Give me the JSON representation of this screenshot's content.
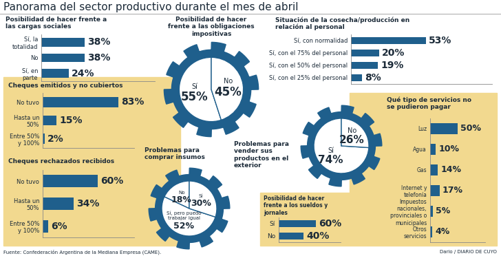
{
  "title": "Panorama del sector productivo durante el mes de abril",
  "source": "Fuente: Confederación Argentina de la Mediana Empresa (CAME).",
  "credit": "Dario / DIARIO DE CUYO",
  "chart_data": [
    {
      "type": "bar",
      "orientation": "horizontal",
      "title": "Posibilidad de hacer frente a las cargas sociales",
      "categories": [
        "Sí, la totalidad",
        "No",
        "Sí, en parte"
      ],
      "values": [
        38,
        38,
        24
      ],
      "value_labels": [
        "38%",
        "38%",
        "24%"
      ],
      "data_labels": true,
      "color": "#1f5f8c",
      "xlim": [
        0,
        100
      ],
      "xticks": [],
      "tick_labels": "y"
    },
    {
      "type": "pie",
      "title": "Posibilidad de hacer frente a las obligaciones impositivas",
      "categories": [
        "Sí",
        "No"
      ],
      "values": [
        55,
        45
      ],
      "value_labels": [
        "55%",
        "45%"
      ],
      "data_labels": true,
      "colors": [
        "#ffffff",
        "#ffffff"
      ]
    },
    {
      "type": "bar",
      "orientation": "horizontal",
      "title": "Situación de la cosecha/producción en relación al personal",
      "categories": [
        "Sí, con normalidad",
        "Sí, con el 75% del personal",
        "Sí, con el 50% del personal",
        "Sí, con el 25% del personal"
      ],
      "values": [
        53,
        20,
        19,
        8
      ],
      "value_labels": [
        "53%",
        "20%",
        "19%",
        "8%"
      ],
      "data_labels": true,
      "color": "#1f5f8c",
      "xlim": [
        0,
        100
      ],
      "xticks": [],
      "tick_labels": "y"
    },
    {
      "type": "bar",
      "orientation": "horizontal",
      "title": "Cheques emitidos y no cubiertos",
      "categories": [
        "No tuvo",
        "Hasta un 50%",
        "Entre 50% y 100%"
      ],
      "values": [
        83,
        15,
        2
      ],
      "value_labels": [
        "83%",
        "15%",
        "2%"
      ],
      "data_labels": true,
      "color": "#1f5f8c",
      "xlim": [
        0,
        100
      ],
      "xticks": [],
      "tick_labels": "y"
    },
    {
      "type": "bar",
      "orientation": "horizontal",
      "title": "Cheques rechazados recibidos",
      "categories": [
        "No tuvo",
        "Hasta un 50%",
        "Entre 50% y 100%"
      ],
      "values": [
        60,
        34,
        6
      ],
      "value_labels": [
        "60%",
        "34%",
        "6%"
      ],
      "data_labels": true,
      "color": "#1f5f8c",
      "xlim": [
        0,
        100
      ],
      "xticks": [],
      "tick_labels": "y"
    },
    {
      "type": "pie",
      "title": "Problemas para comprar insumos",
      "categories": [
        "No",
        "Sí, pero puedo trabajar igual",
        "Sí"
      ],
      "values": [
        18,
        52,
        30
      ],
      "value_labels": [
        "18%",
        "52%",
        "30%"
      ],
      "data_labels": true,
      "colors": [
        "#ffffff",
        "#ffffff",
        "#ffffff"
      ]
    },
    {
      "type": "pie",
      "title": "Problemas para vender sus productos en el exterior",
      "categories": [
        "Sí",
        "No"
      ],
      "values": [
        74,
        26
      ],
      "value_labels": [
        "74%",
        "26%"
      ],
      "data_labels": true,
      "colors": [
        "#ffffff",
        "#ffffff"
      ]
    },
    {
      "type": "bar",
      "orientation": "horizontal",
      "title": "Posibilidad de hacer frente a los sueldos y jornales",
      "categories": [
        "Sí",
        "No"
      ],
      "values": [
        60,
        40
      ],
      "value_labels": [
        "60%",
        "40%"
      ],
      "data_labels": true,
      "color": "#1f5f8c",
      "xlim": [
        0,
        100
      ],
      "xticks": [],
      "tick_labels": "y"
    },
    {
      "type": "bar",
      "orientation": "horizontal",
      "title": "Qué tipo de servicios no se pudieron pagar",
      "categories": [
        "Luz",
        "Agua",
        "Gas",
        "Internet y telefonía",
        "Impuestos nacionales, provinciales o municipales",
        "Otros servicios"
      ],
      "values": [
        50,
        10,
        14,
        17,
        5,
        4
      ],
      "value_labels": [
        "50%",
        "10%",
        "14%",
        "17%",
        "5%",
        "4%"
      ],
      "data_labels": true,
      "color": "#1f5f8c",
      "xlim": [
        0,
        100
      ],
      "xticks": [],
      "tick_labels": "y"
    }
  ]
}
